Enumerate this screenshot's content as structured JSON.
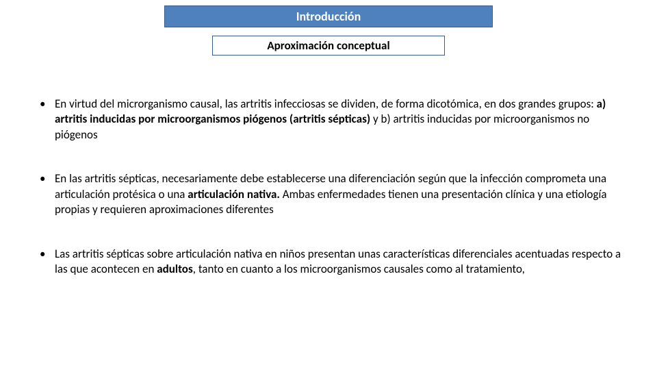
{
  "title": "Introducción",
  "subtitle": "Aproximación conceptual",
  "colors": {
    "title_bg": "#4f81bd",
    "title_border": "#385d8a",
    "title_text": "#ffffff",
    "subtitle_border": "#385d8a",
    "body_text": "#000000",
    "page_bg": "#ffffff"
  },
  "typography": {
    "title_fontsize": 18,
    "subtitle_fontsize": 17,
    "body_fontsize": 17,
    "font_family": "Calibri"
  },
  "bullets": [
    {
      "runs": [
        {
          "t": "En virtud del microrganismo causal, las artritis infecciosas se dividen, de forma dicotómica, en dos grandes grupos: ",
          "b": false
        },
        {
          "t": "a) artritis inducidas por microorganismos piógenos (artritis sépticas)",
          "b": true
        },
        {
          "t": " y b) artritis inducidas por microorganismos no piógenos",
          "b": false
        }
      ]
    },
    {
      "runs": [
        {
          "t": "En las artritis sépticas, necesariamente debe establecerse una diferenciación según que la infección comprometa una articulación protésica o una ",
          "b": false
        },
        {
          "t": "articulación nativa.",
          "b": true
        },
        {
          "t": " Ambas enfermedades tienen una presentación clínica y una etiología propias y requieren  aproximaciones diferentes",
          "b": false
        }
      ]
    },
    {
      "runs": [
        {
          "t": "Las artritis sépticas sobre articulación nativa en niños presentan unas características diferenciales acentuadas respecto a las que acontecen en ",
          "b": false
        },
        {
          "t": "adultos",
          "b": true
        },
        {
          "t": ", tanto en cuanto a los microorganismos causales como al tratamiento,",
          "b": false
        }
      ]
    }
  ]
}
